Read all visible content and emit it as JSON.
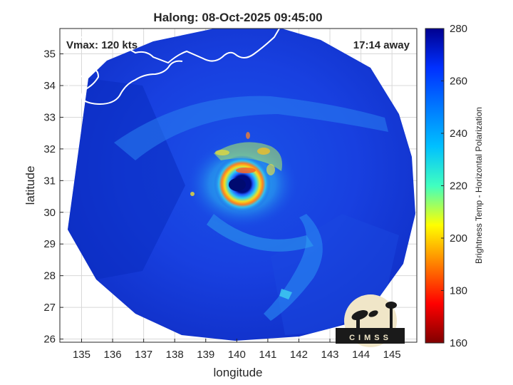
{
  "chart_data": {
    "type": "heatmap",
    "title": "Halong: 08-Oct-2025 09:45:00",
    "xlabel": "longitude",
    "ylabel": "latitude",
    "xlim": [
      134.3,
      145.8
    ],
    "ylim": [
      25.9,
      35.8
    ],
    "xticks": [
      135,
      136,
      137,
      138,
      139,
      140,
      141,
      142,
      143,
      144,
      145
    ],
    "yticks": [
      26,
      27,
      28,
      29,
      30,
      31,
      32,
      33,
      34,
      35
    ],
    "grid": true,
    "annotations": {
      "vmax": "Vmax: 120 kts",
      "time_away": "17:14 away"
    },
    "storm_center": {
      "lon": 140.0,
      "lat": 30.9
    },
    "colorbar": {
      "label": "Brightness Temp - Horizontal Polarization",
      "range": [
        160,
        280
      ],
      "ticks": [
        160,
        180,
        200,
        220,
        240,
        260,
        280
      ],
      "colormap": "jet"
    },
    "logo_text": "CIMSS"
  },
  "colors": {
    "background": "#ffffff",
    "plot_background": "#ffffff",
    "grid": "#d8d8d8",
    "text": "#262626",
    "coastline": "#ffffff"
  }
}
